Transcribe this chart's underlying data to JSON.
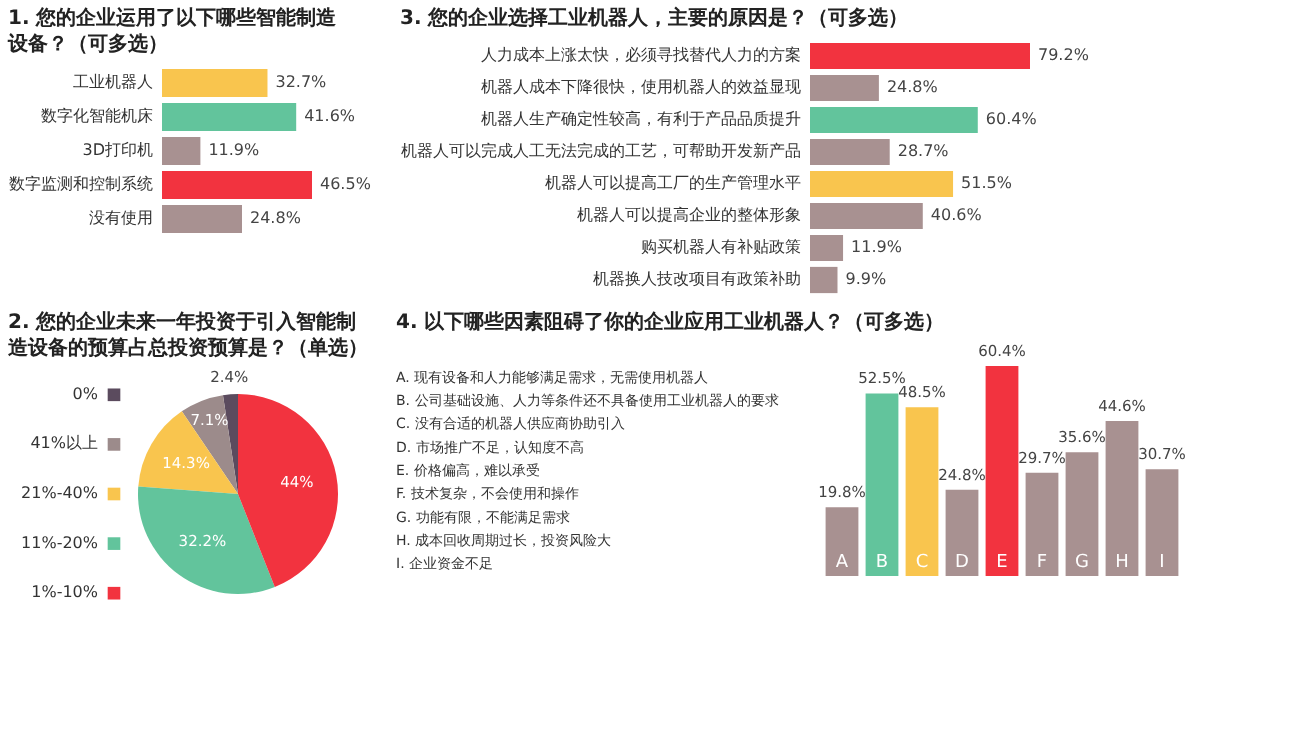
{
  "chart_data": [
    {
      "type": "bar",
      "orientation": "horizontal",
      "title": "1. 您的企业运用了以下哪些智能制造设备？（可多选）",
      "categories": [
        "工业机器人",
        "数字化智能机床",
        "3D打印机",
        "数字监测和控制系统",
        "没有使用"
      ],
      "values": [
        32.7,
        41.6,
        11.9,
        46.5,
        24.8
      ],
      "colors": [
        "#f9c54e",
        "#62c49c",
        "#a89191",
        "#f2333f",
        "#a89191"
      ],
      "value_labels": [
        "32.7%",
        "41.6%",
        "11.9%",
        "46.5%",
        "24.8%"
      ]
    },
    {
      "type": "bar",
      "orientation": "horizontal",
      "title": "3. 您的企业选择工业机器人，主要的原因是？（可多选）",
      "categories": [
        "人力成本上涨太快，必须寻找替代人力的方案",
        "机器人成本下降很快，使用机器人的效益显现",
        "机器人生产确定性较高，有利于产品品质提升",
        "机器人可以完成人工无法完成的工艺，可帮助开发新产品",
        "机器人可以提高工厂的生产管理水平",
        "机器人可以提高企业的整体形象",
        "购买机器人有补贴政策",
        "机器换人技改项目有政策补助"
      ],
      "values": [
        79.2,
        24.8,
        60.4,
        28.7,
        51.5,
        40.6,
        11.9,
        9.9
      ],
      "colors": [
        "#f2333f",
        "#a89191",
        "#62c49c",
        "#a89191",
        "#f9c54e",
        "#a89191",
        "#a89191",
        "#a89191"
      ],
      "value_labels": [
        "79.2%",
        "24.8%",
        "60.4%",
        "28.7%",
        "51.5%",
        "40.6%",
        "11.9%",
        "9.9%"
      ]
    },
    {
      "type": "pie",
      "title": "2. 您的企业未来一年投资于引入智能制造设备的预算占总投资预算是？（单选）",
      "categories": [
        "0%",
        "41%以上",
        "21%-40%",
        "11%-20%",
        "1%-10%"
      ],
      "values": [
        2.4,
        7.1,
        14.3,
        32.2,
        44
      ],
      "colors": [
        "#5b4b5e",
        "#9c8b8b",
        "#f9c54e",
        "#62c49c",
        "#f2333f"
      ],
      "value_labels": [
        "2.4%",
        "7.1%",
        "14.3%",
        "32.2%",
        "44%"
      ],
      "legend": "left"
    },
    {
      "type": "bar",
      "title": "4. 以下哪些因素阻碍了你的企业应用工业机器人？（可多选）",
      "categories": [
        "A",
        "B",
        "C",
        "D",
        "E",
        "F",
        "G",
        "H",
        "I"
      ],
      "values": [
        19.8,
        52.5,
        48.5,
        24.8,
        60.4,
        29.7,
        35.6,
        44.6,
        30.7
      ],
      "colors": [
        "#a89191",
        "#62c49c",
        "#f9c54e",
        "#a89191",
        "#f2333f",
        "#a89191",
        "#a89191",
        "#a89191",
        "#a89191"
      ],
      "value_labels": [
        "19.8%",
        "52.5%",
        "48.5%",
        "24.8%",
        "60.4%",
        "29.7%",
        "35.6%",
        "44.6%",
        "30.7%"
      ],
      "annotations": [
        "A. 现有设备和人力能够满足需求，无需使用机器人",
        "B. 公司基础设施、人力等条件还不具备使用工业机器人的要求",
        "C. 没有合适的机器人供应商协助引入",
        "D. 市场推广不足，认知度不高",
        "E. 价格偏高，难以承受",
        "F. 技术复杂，不会使用和操作",
        "G. 功能有限，不能满足需求",
        "H. 成本回收周期过长，投资风险大",
        "I. 企业资金不足"
      ]
    }
  ]
}
